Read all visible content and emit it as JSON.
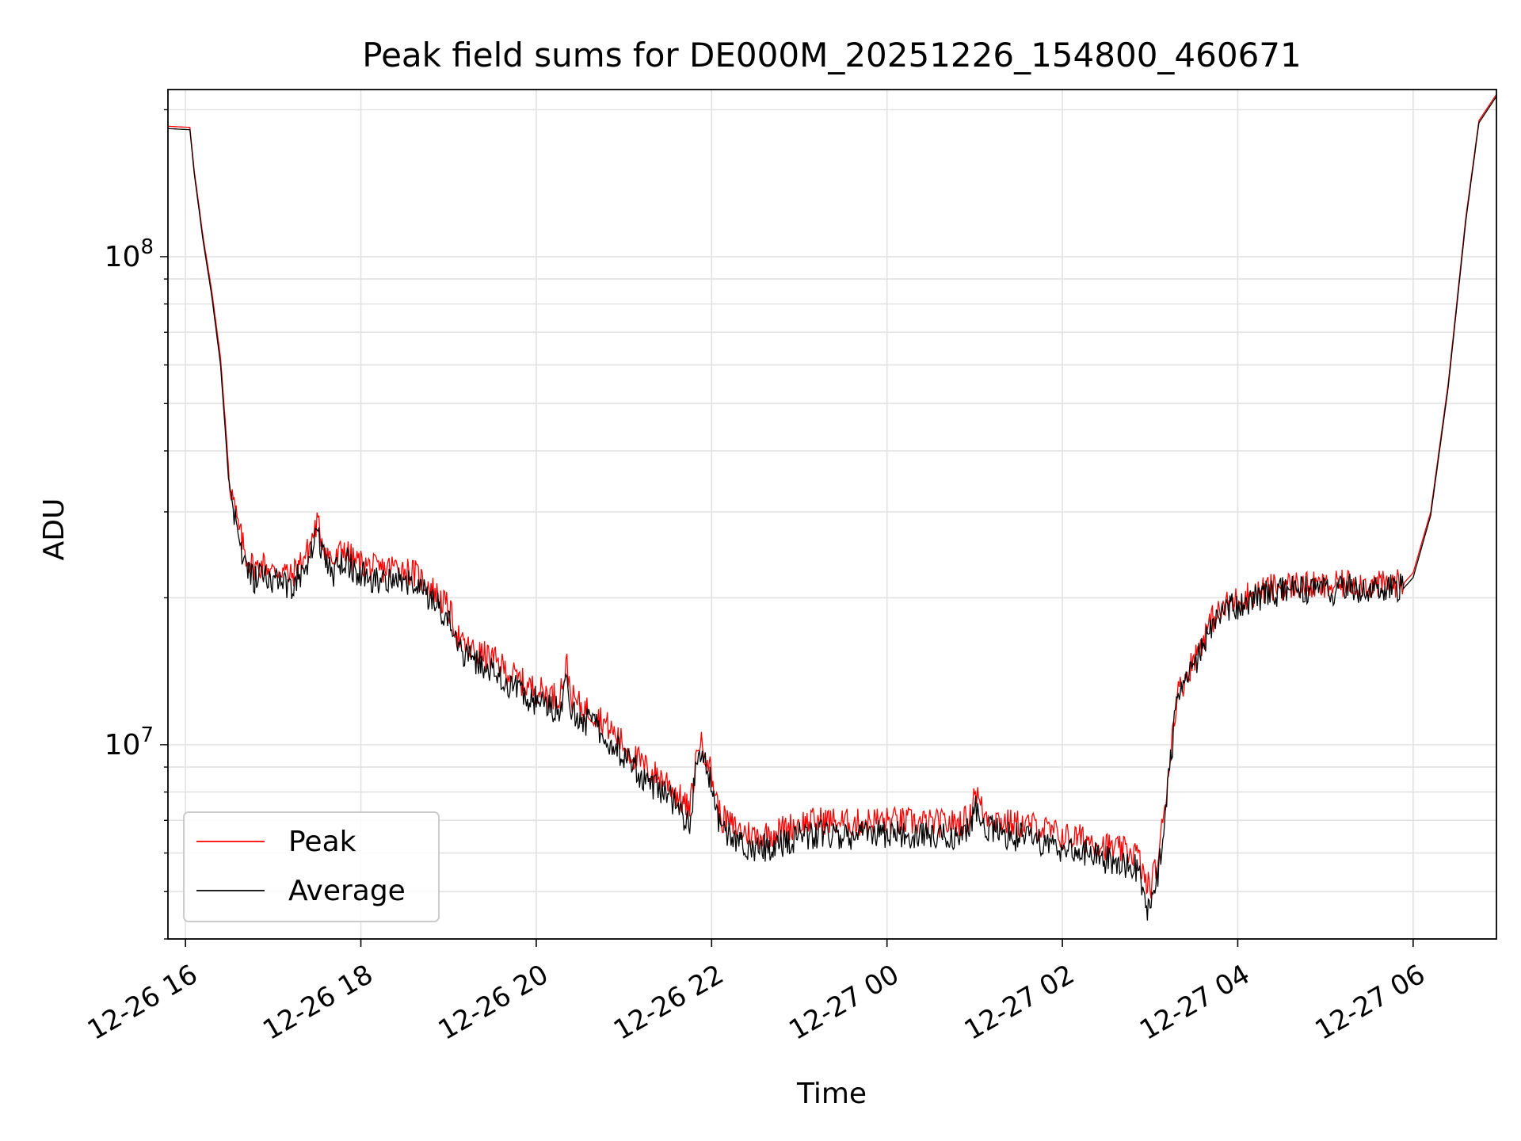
{
  "chart_data": {
    "type": "line",
    "title": "Peak field sums for DE000M_20251226_154800_460671",
    "xlabel": "Time",
    "ylabel": "ADU",
    "yscale": "log",
    "xlim_hours": [
      15.8,
      30.95
    ],
    "ylim": [
      4000000,
      220000000
    ],
    "x_ticks": [
      {
        "hours": 16,
        "label": "12-26 16"
      },
      {
        "hours": 18,
        "label": "12-26 18"
      },
      {
        "hours": 20,
        "label": "12-26 20"
      },
      {
        "hours": 22,
        "label": "12-26 22"
      },
      {
        "hours": 24,
        "label": "12-27 00"
      },
      {
        "hours": 26,
        "label": "12-27 02"
      },
      {
        "hours": 28,
        "label": "12-27 04"
      },
      {
        "hours": 30,
        "label": "12-27 06"
      }
    ],
    "y_ticks": [
      {
        "value": 10000000,
        "base": "10",
        "exp": "7"
      },
      {
        "value": 100000000,
        "base": "10",
        "exp": "8"
      }
    ],
    "grid": true,
    "legend_position": "lower-left",
    "x_unit_note": "x values are hours since 2025-12-26 00:00",
    "series": [
      {
        "name": "Peak",
        "color": "#ff0000",
        "x": [
          15.8,
          16.05,
          16.1,
          16.2,
          16.3,
          16.4,
          16.45,
          16.5,
          16.6,
          16.7,
          16.8,
          16.9,
          17.0,
          17.1,
          17.2,
          17.3,
          17.4,
          17.5,
          17.6,
          17.7,
          17.8,
          17.9,
          18.0,
          18.2,
          18.4,
          18.6,
          18.8,
          19.0,
          19.15,
          19.3,
          19.5,
          19.7,
          19.9,
          20.1,
          20.25,
          20.35,
          20.4,
          20.5,
          20.7,
          20.9,
          21.1,
          21.3,
          21.5,
          21.75,
          21.85,
          21.95,
          22.1,
          22.3,
          22.5,
          22.7,
          23.0,
          23.3,
          23.6,
          23.9,
          24.2,
          24.5,
          24.8,
          24.95,
          25.0,
          25.1,
          25.4,
          25.7,
          26.0,
          26.3,
          26.6,
          26.85,
          26.95,
          27.0,
          27.1,
          27.2,
          27.3,
          27.5,
          27.7,
          27.9,
          28.1,
          28.4,
          28.7,
          29.0,
          29.3,
          29.6,
          29.9,
          30.0,
          30.2,
          30.4,
          30.6,
          30.75,
          30.95
        ],
        "y": [
          185000000,
          184000000,
          150000000,
          110000000,
          85000000,
          62000000,
          47000000,
          35000000,
          28000000,
          24000000,
          23000000,
          23500000,
          22500000,
          23000000,
          22000000,
          23500000,
          25000000,
          28500000,
          25000000,
          23500000,
          25500000,
          24000000,
          23500000,
          22800000,
          23200000,
          22500000,
          21000000,
          19000000,
          16000000,
          15500000,
          15000000,
          14000000,
          13200000,
          12800000,
          12500000,
          14500000,
          12500000,
          12000000,
          11500000,
          10500000,
          9500000,
          8800000,
          8400000,
          7300000,
          10200000,
          9500000,
          7100000,
          6700000,
          6500000,
          6600000,
          6900000,
          7000000,
          6900000,
          7000000,
          6950000,
          6900000,
          6900000,
          7100000,
          8200000,
          7200000,
          6900000,
          6800000,
          6500000,
          6400000,
          6100000,
          6000000,
          5200000,
          5100000,
          5900000,
          8500000,
          12500000,
          15000000,
          18000000,
          19500000,
          20200000,
          21000000,
          21300000,
          21000000,
          21500000,
          21200000,
          21500000,
          22500000,
          30000000,
          55000000,
          120000000,
          190000000,
          215000000
        ]
      },
      {
        "name": "Average",
        "color": "#000000",
        "x": [
          15.8,
          16.05,
          16.1,
          16.2,
          16.3,
          16.4,
          16.45,
          16.5,
          16.6,
          16.7,
          16.8,
          16.9,
          17.0,
          17.1,
          17.2,
          17.3,
          17.4,
          17.5,
          17.6,
          17.7,
          17.8,
          17.9,
          18.0,
          18.2,
          18.4,
          18.6,
          18.8,
          19.0,
          19.15,
          19.3,
          19.5,
          19.7,
          19.9,
          20.1,
          20.25,
          20.35,
          20.4,
          20.5,
          20.7,
          20.9,
          21.1,
          21.3,
          21.5,
          21.75,
          21.85,
          21.95,
          22.1,
          22.3,
          22.5,
          22.7,
          23.0,
          23.3,
          23.6,
          23.9,
          24.2,
          24.5,
          24.8,
          24.95,
          25.0,
          25.1,
          25.4,
          25.7,
          26.0,
          26.3,
          26.6,
          26.85,
          26.95,
          27.0,
          27.1,
          27.2,
          27.3,
          27.5,
          27.7,
          27.9,
          28.1,
          28.4,
          28.7,
          29.0,
          29.3,
          29.6,
          29.9,
          30.0,
          30.2,
          30.4,
          30.6,
          30.75,
          30.95
        ],
        "y": [
          183000000,
          182000000,
          148000000,
          108000000,
          83000000,
          60000000,
          45000000,
          33000000,
          26500000,
          22500000,
          21800000,
          22300000,
          21500000,
          21900000,
          21000000,
          22300000,
          23800000,
          26800000,
          23800000,
          22400000,
          24300000,
          22900000,
          22400000,
          21700000,
          22000000,
          21400000,
          20000000,
          18000000,
          15200000,
          14700000,
          14200000,
          13300000,
          12500000,
          12100000,
          11800000,
          13200000,
          11800000,
          11300000,
          10900000,
          9900000,
          9000000,
          8300000,
          7900000,
          6900000,
          9700000,
          9000000,
          6700000,
          6300000,
          6100000,
          6200000,
          6500000,
          6600000,
          6500000,
          6600000,
          6550000,
          6500000,
          6500000,
          6700000,
          7600000,
          6800000,
          6500000,
          6400000,
          6100000,
          6000000,
          5700000,
          5600000,
          4700000,
          4600000,
          5500000,
          8000000,
          12000000,
          14500000,
          17500000,
          19000000,
          19700000,
          20500000,
          20800000,
          20500000,
          21000000,
          20700000,
          21000000,
          22000000,
          29500000,
          54000000,
          118000000,
          188000000,
          213000000
        ]
      }
    ]
  }
}
